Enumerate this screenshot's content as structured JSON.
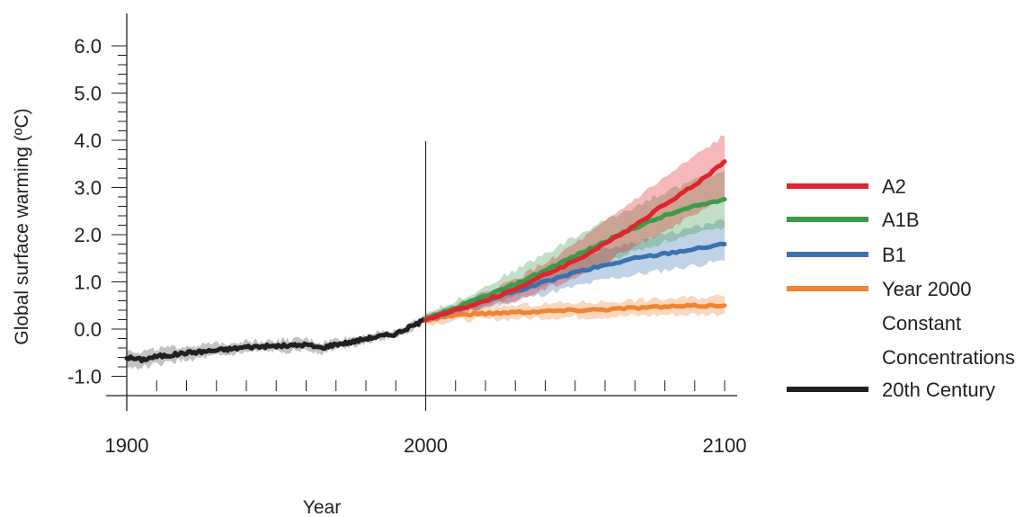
{
  "chart_data": {
    "type": "line",
    "title": "",
    "xlabel": "Year",
    "ylabel": "Global surface warming (ºC)",
    "xlim": [
      1900,
      2100
    ],
    "ylim": [
      -1.5,
      6.5
    ],
    "x_ticks": [
      1900,
      2000,
      2100
    ],
    "x_tick_labels": [
      "1900",
      "2000",
      "2100"
    ],
    "y_ticks": [
      -1.0,
      0.0,
      1.0,
      2.0,
      3.0,
      4.0,
      5.0,
      6.0
    ],
    "y_tick_labels": [
      "-1.0",
      "0.0",
      "1.0",
      "2.0",
      "3.0",
      "4.0",
      "5.0",
      "6.0"
    ],
    "vertical_reference_line": 2000,
    "grid": false,
    "legend_position": "right",
    "series": [
      {
        "name": "A2",
        "color": "#e0242d",
        "x": [
          2000,
          2010,
          2020,
          2030,
          2040,
          2050,
          2060,
          2070,
          2080,
          2090,
          2100
        ],
        "y": [
          0.2,
          0.4,
          0.6,
          0.85,
          1.15,
          1.45,
          1.8,
          2.2,
          2.65,
          3.05,
          3.55
        ],
        "band_low": [
          0.15,
          0.3,
          0.45,
          0.6,
          0.85,
          1.1,
          1.4,
          1.75,
          2.1,
          2.4,
          2.8
        ],
        "band_high": [
          0.3,
          0.5,
          0.75,
          1.05,
          1.4,
          1.8,
          2.25,
          2.75,
          3.2,
          3.65,
          4.1
        ]
      },
      {
        "name": "A1B",
        "color": "#3c9a48",
        "x": [
          2000,
          2010,
          2020,
          2030,
          2040,
          2050,
          2060,
          2070,
          2080,
          2090,
          2100
        ],
        "y": [
          0.2,
          0.45,
          0.7,
          0.95,
          1.25,
          1.55,
          1.85,
          2.15,
          2.4,
          2.6,
          2.75
        ],
        "band_low": [
          0.15,
          0.3,
          0.5,
          0.7,
          0.95,
          1.15,
          1.4,
          1.65,
          1.85,
          2.0,
          2.15
        ],
        "band_high": [
          0.3,
          0.6,
          0.9,
          1.25,
          1.6,
          1.95,
          2.3,
          2.6,
          2.9,
          3.15,
          3.35
        ]
      },
      {
        "name": "B1",
        "color": "#3a72b0",
        "x": [
          2000,
          2010,
          2020,
          2030,
          2040,
          2050,
          2060,
          2070,
          2080,
          2090,
          2100
        ],
        "y": [
          0.2,
          0.4,
          0.6,
          0.8,
          1.0,
          1.2,
          1.35,
          1.5,
          1.6,
          1.7,
          1.8
        ],
        "band_low": [
          0.15,
          0.3,
          0.45,
          0.6,
          0.75,
          0.9,
          1.05,
          1.15,
          1.25,
          1.35,
          1.45
        ],
        "band_high": [
          0.3,
          0.5,
          0.75,
          1.0,
          1.25,
          1.5,
          1.7,
          1.85,
          2.0,
          2.15,
          2.3
        ]
      },
      {
        "name": "Year 2000 Constant Concentrations",
        "label_lines": [
          "Year 2000",
          "Constant",
          "Concentrations"
        ],
        "color": "#f08432",
        "x": [
          2000,
          2010,
          2020,
          2030,
          2040,
          2050,
          2060,
          2070,
          2080,
          2090,
          2100
        ],
        "y": [
          0.2,
          0.3,
          0.33,
          0.36,
          0.38,
          0.4,
          0.42,
          0.45,
          0.47,
          0.49,
          0.5
        ],
        "band_low": [
          0.1,
          0.18,
          0.2,
          0.22,
          0.24,
          0.25,
          0.26,
          0.28,
          0.3,
          0.31,
          0.32
        ],
        "band_high": [
          0.3,
          0.42,
          0.47,
          0.5,
          0.53,
          0.56,
          0.58,
          0.61,
          0.64,
          0.67,
          0.7
        ]
      },
      {
        "name": "20th Century",
        "color": "#231f20",
        "band_color": "#bbbcbe",
        "x": [
          1900,
          1905,
          1910,
          1915,
          1920,
          1925,
          1930,
          1935,
          1940,
          1945,
          1950,
          1955,
          1960,
          1965,
          1970,
          1975,
          1980,
          1985,
          1990,
          1995,
          2000
        ],
        "y": [
          -0.6,
          -0.65,
          -0.58,
          -0.55,
          -0.5,
          -0.48,
          -0.45,
          -0.42,
          -0.38,
          -0.37,
          -0.36,
          -0.35,
          -0.33,
          -0.4,
          -0.32,
          -0.28,
          -0.2,
          -0.15,
          -0.1,
          0.05,
          0.2
        ],
        "band_low": [
          -0.8,
          -0.82,
          -0.75,
          -0.7,
          -0.66,
          -0.62,
          -0.58,
          -0.55,
          -0.5,
          -0.48,
          -0.47,
          -0.46,
          -0.44,
          -0.5,
          -0.42,
          -0.36,
          -0.28,
          -0.22,
          -0.16,
          -0.02,
          0.12
        ],
        "band_high": [
          -0.45,
          -0.48,
          -0.42,
          -0.4,
          -0.36,
          -0.34,
          -0.31,
          -0.28,
          -0.25,
          -0.25,
          -0.24,
          -0.23,
          -0.21,
          -0.29,
          -0.21,
          -0.18,
          -0.11,
          -0.07,
          -0.02,
          0.12,
          0.28
        ]
      }
    ]
  }
}
